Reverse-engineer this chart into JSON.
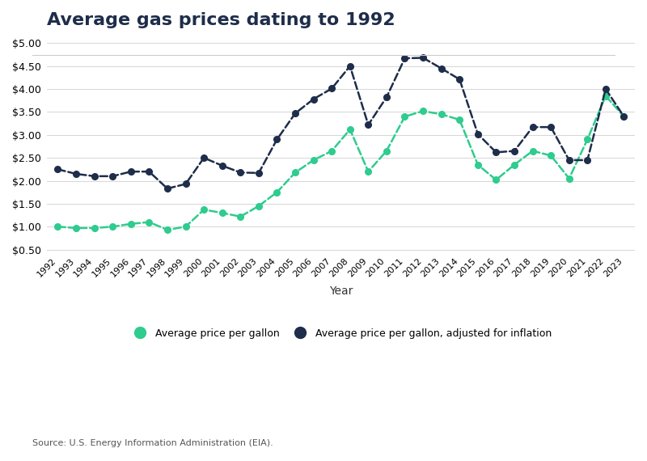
{
  "title": "Average gas prices dating to 1992",
  "xlabel": "Year",
  "source_text": "Source: U.S. Energy Information Administration (EIA).",
  "legend_label_green": "Average price per gallon",
  "legend_label_dark": "Average price per gallon, adjusted for inflation",
  "years": [
    1992,
    1993,
    1994,
    1995,
    1996,
    1997,
    1998,
    1999,
    2000,
    2001,
    2002,
    2003,
    2004,
    2005,
    2006,
    2007,
    2008,
    2009,
    2010,
    2011,
    2012,
    2013,
    2014,
    2015,
    2016,
    2017,
    2018,
    2019,
    2020,
    2021,
    2022,
    2023
  ],
  "avg_price": [
    1.0,
    0.97,
    0.97,
    1.0,
    1.06,
    1.1,
    0.93,
    1.0,
    1.37,
    1.3,
    1.22,
    1.45,
    1.75,
    2.18,
    2.45,
    2.65,
    3.12,
    2.2,
    2.65,
    3.4,
    3.52,
    3.45,
    3.33,
    2.35,
    2.02,
    2.35,
    2.65,
    2.55,
    2.05,
    2.9,
    3.85,
    3.4
  ],
  "adj_price": [
    2.25,
    2.15,
    2.1,
    2.1,
    2.2,
    2.2,
    1.83,
    1.93,
    2.5,
    2.33,
    2.18,
    2.17,
    2.9,
    3.47,
    3.78,
    4.01,
    4.5,
    3.22,
    3.82,
    4.67,
    4.68,
    4.45,
    4.21,
    3.02,
    2.62,
    2.65,
    3.17,
    3.17,
    2.45,
    2.45,
    4.0,
    3.4
  ],
  "green_color": "#2ecc8e",
  "dark_color": "#1e2d4a",
  "title_color": "#1e2d4a",
  "bg_color": "#ffffff",
  "grid_color": "#d0d0d0",
  "source_color": "#555555",
  "yticks": [
    0.5,
    1.0,
    1.5,
    2.0,
    2.5,
    3.0,
    3.5,
    4.0,
    4.5,
    5.0
  ],
  "ylim_low": 0.4,
  "ylim_high": 5.1,
  "title_fontsize": 16,
  "axis_label_fontsize": 10,
  "tick_fontsize": 8,
  "ytick_fontsize": 9,
  "legend_fontsize": 9,
  "source_fontsize": 8,
  "line_width": 1.8,
  "marker_size": 5.5
}
